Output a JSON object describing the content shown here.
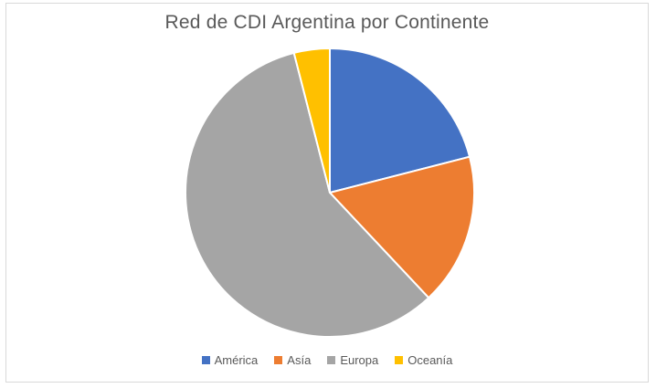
{
  "chart_data": {
    "type": "pie",
    "title": "Red de CDI Argentina por Continente",
    "categories": [
      "América",
      "Asía",
      "Europa",
      "Oceanía"
    ],
    "values": [
      21,
      17,
      58,
      4
    ],
    "colors": [
      "#4472C4",
      "#ED7D31",
      "#A5A5A5",
      "#FFC000"
    ],
    "legend_position": "bottom",
    "start_angle": "12 o'clock, clockwise"
  }
}
